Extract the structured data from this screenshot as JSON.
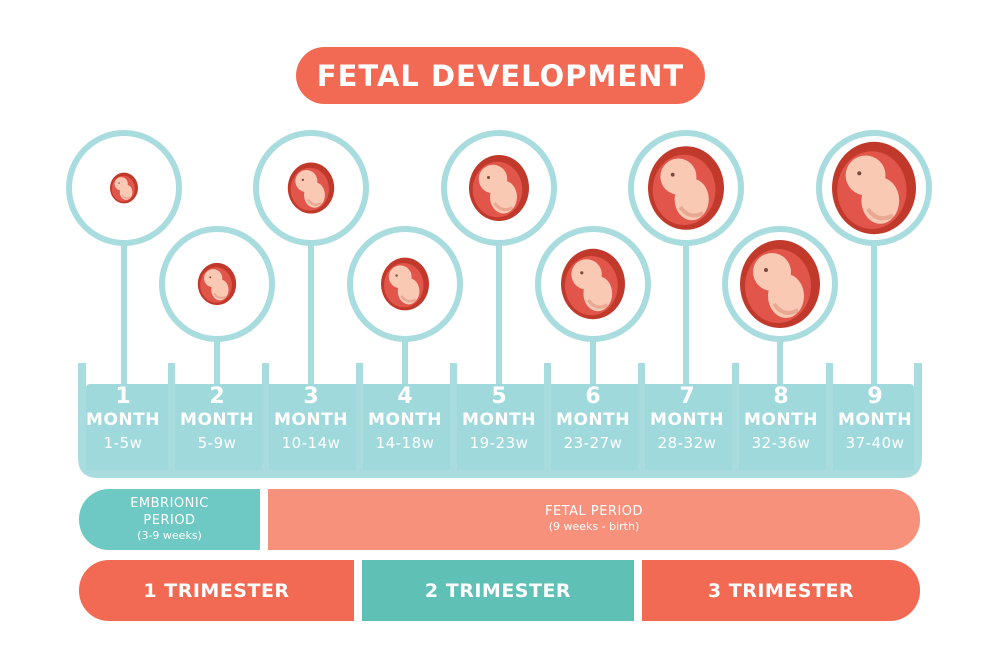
{
  "title": "FETAL DEVELOPMENT",
  "months": [
    {
      "number": "1",
      "label": "MONTH",
      "weeks": "1-5w"
    },
    {
      "number": "2",
      "label": "MONTH",
      "weeks": "5-9w"
    },
    {
      "number": "3",
      "label": "MONTH",
      "weeks": "10-14w"
    },
    {
      "number": "4",
      "label": "MONTH",
      "weeks": "14-18w"
    },
    {
      "number": "5",
      "label": "MONTH",
      "weeks": "19-23w"
    },
    {
      "number": "6",
      "label": "MONTH",
      "weeks": "23-27w"
    },
    {
      "number": "7",
      "label": "MONTH",
      "weeks": "28-32w"
    },
    {
      "number": "8",
      "label": "MONTH",
      "weeks": "32-36w"
    },
    {
      "number": "9",
      "label": "MONTH",
      "weeks": "37-40w"
    }
  ],
  "periods": {
    "embryonic": {
      "line1": "EMBRIONIC",
      "line2": "PERIOD",
      "range": "(3-9 weeks)"
    },
    "fetal": {
      "line1": "FETAL PERIOD",
      "range": "(9 weeks - birth)"
    }
  },
  "trimesters": [
    "1 TRIMESTER",
    "2 TRIMESTER",
    "3 TRIMESTER"
  ],
  "colors": {
    "coral": "#f26a53",
    "salmon": "#f7917c",
    "teal": "#5fc0b5",
    "light_teal": "#9fd9dc",
    "ring": "#a9dcde",
    "embryo_sac": "#c0392b",
    "embryo_skin": "#f9c9b4"
  },
  "icons": [
    "embryo-month-1-icon",
    "embryo-month-2-icon",
    "embryo-month-3-icon",
    "embryo-month-4-icon",
    "embryo-month-5-icon",
    "embryo-month-6-icon",
    "embryo-month-7-icon",
    "embryo-month-8-icon",
    "embryo-month-9-icon"
  ]
}
